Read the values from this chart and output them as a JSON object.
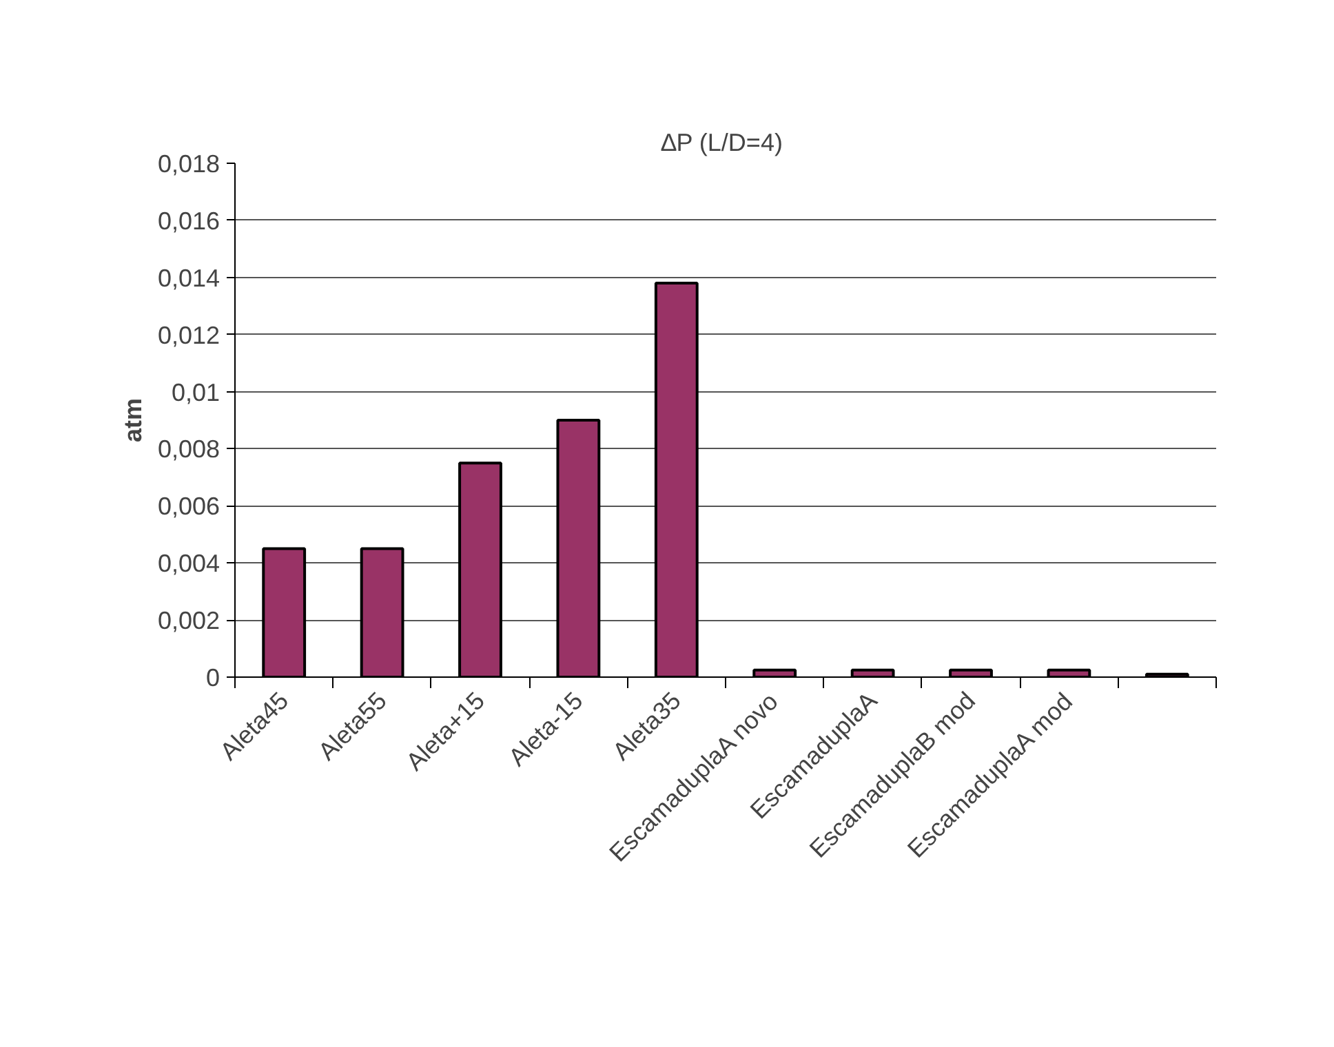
{
  "chart_data": {
    "type": "bar",
    "title": "∆P  (L/D=4)",
    "ylabel": "atm",
    "categories": [
      "Aleta45",
      "Aleta55",
      "Aleta+15",
      "Aleta-15",
      "Aleta35",
      "EscamaduplaA novo",
      "EscamaduplaA",
      "EscamaduplaB mod",
      "EscamaduplaA mod",
      null
    ],
    "values": [
      0.0045,
      0.0045,
      0.0075,
      0.009,
      0.0138,
      0.00025,
      0.00025,
      0.00025,
      0.00025,
      0.0001
    ],
    "color": "#993366",
    "ylim": [
      0,
      0.018
    ],
    "yticks": [
      0,
      {
        "value": 0.002,
        "label": "0,002"
      },
      {
        "value": 0.004,
        "label": "0,004"
      },
      {
        "value": 0.006,
        "label": "0,006"
      },
      {
        "value": 0.008,
        "label": "0,008"
      },
      {
        "value": 0.01,
        "label": "0,01"
      },
      {
        "value": 0.012,
        "label": "0,012"
      },
      {
        "value": 0.014,
        "label": "0,014"
      },
      {
        "value": 0.016,
        "label": "0,016"
      },
      {
        "value": 0.018,
        "label": "0,018"
      }
    ],
    "grid": "y"
  }
}
